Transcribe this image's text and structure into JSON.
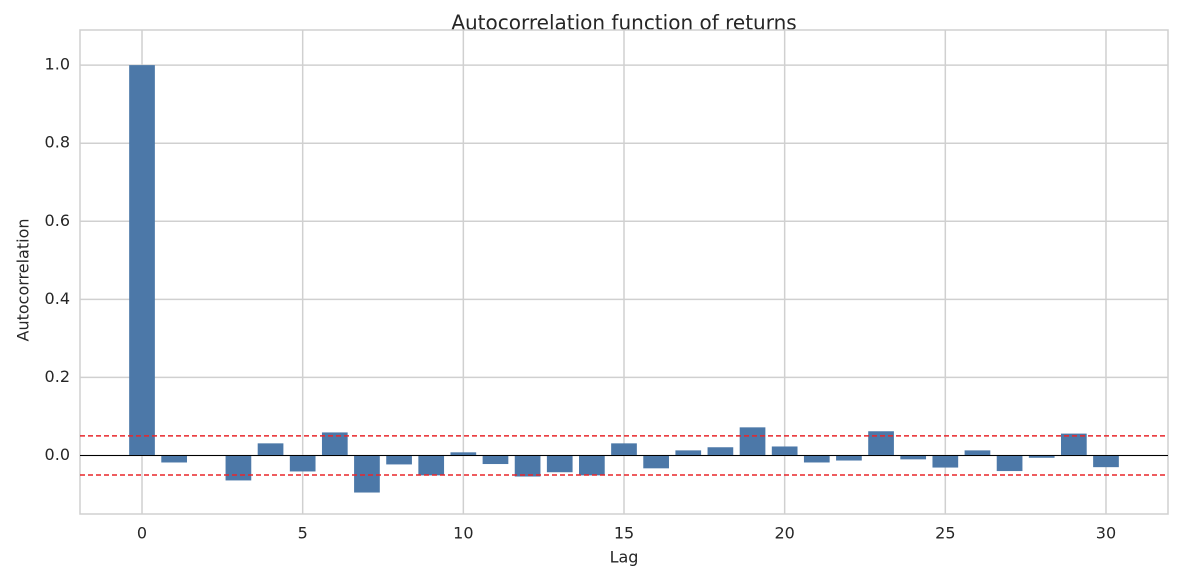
{
  "chart_data": {
    "type": "bar",
    "title": "Autocorrelation function of returns",
    "x_label": "Lag",
    "y_label": "Autocorrelation",
    "x": [
      0,
      1,
      2,
      3,
      4,
      5,
      6,
      7,
      8,
      9,
      10,
      11,
      12,
      13,
      14,
      15,
      16,
      17,
      18,
      19,
      20,
      21,
      22,
      23,
      24,
      25,
      26,
      27,
      28,
      29,
      30
    ],
    "values": [
      1.0,
      -0.018,
      0.0,
      -0.064,
      0.031,
      -0.041,
      0.059,
      -0.095,
      -0.023,
      -0.051,
      0.008,
      -0.022,
      -0.054,
      -0.043,
      -0.051,
      0.031,
      -0.033,
      0.013,
      0.021,
      0.072,
      0.023,
      -0.018,
      -0.013,
      0.062,
      -0.01,
      -0.031,
      0.013,
      -0.04,
      -0.006,
      0.056,
      -0.03
    ],
    "color": "#4c78a8",
    "xlim": [
      -1.93,
      31.93
    ],
    "ylim": [
      -0.15,
      1.09
    ],
    "xticks": [
      0,
      5,
      10,
      15,
      20,
      25,
      30
    ],
    "yticks": [
      {
        "value": 0,
        "label": "0.0"
      },
      0.2,
      0.4,
      0.6,
      0.8,
      {
        "value": 1,
        "label": "1.0"
      }
    ],
    "grid": true,
    "reference_lines": [
      0.05,
      -0.05
    ],
    "reference_color": "#e8262a",
    "zero_line_color": "#000000"
  }
}
